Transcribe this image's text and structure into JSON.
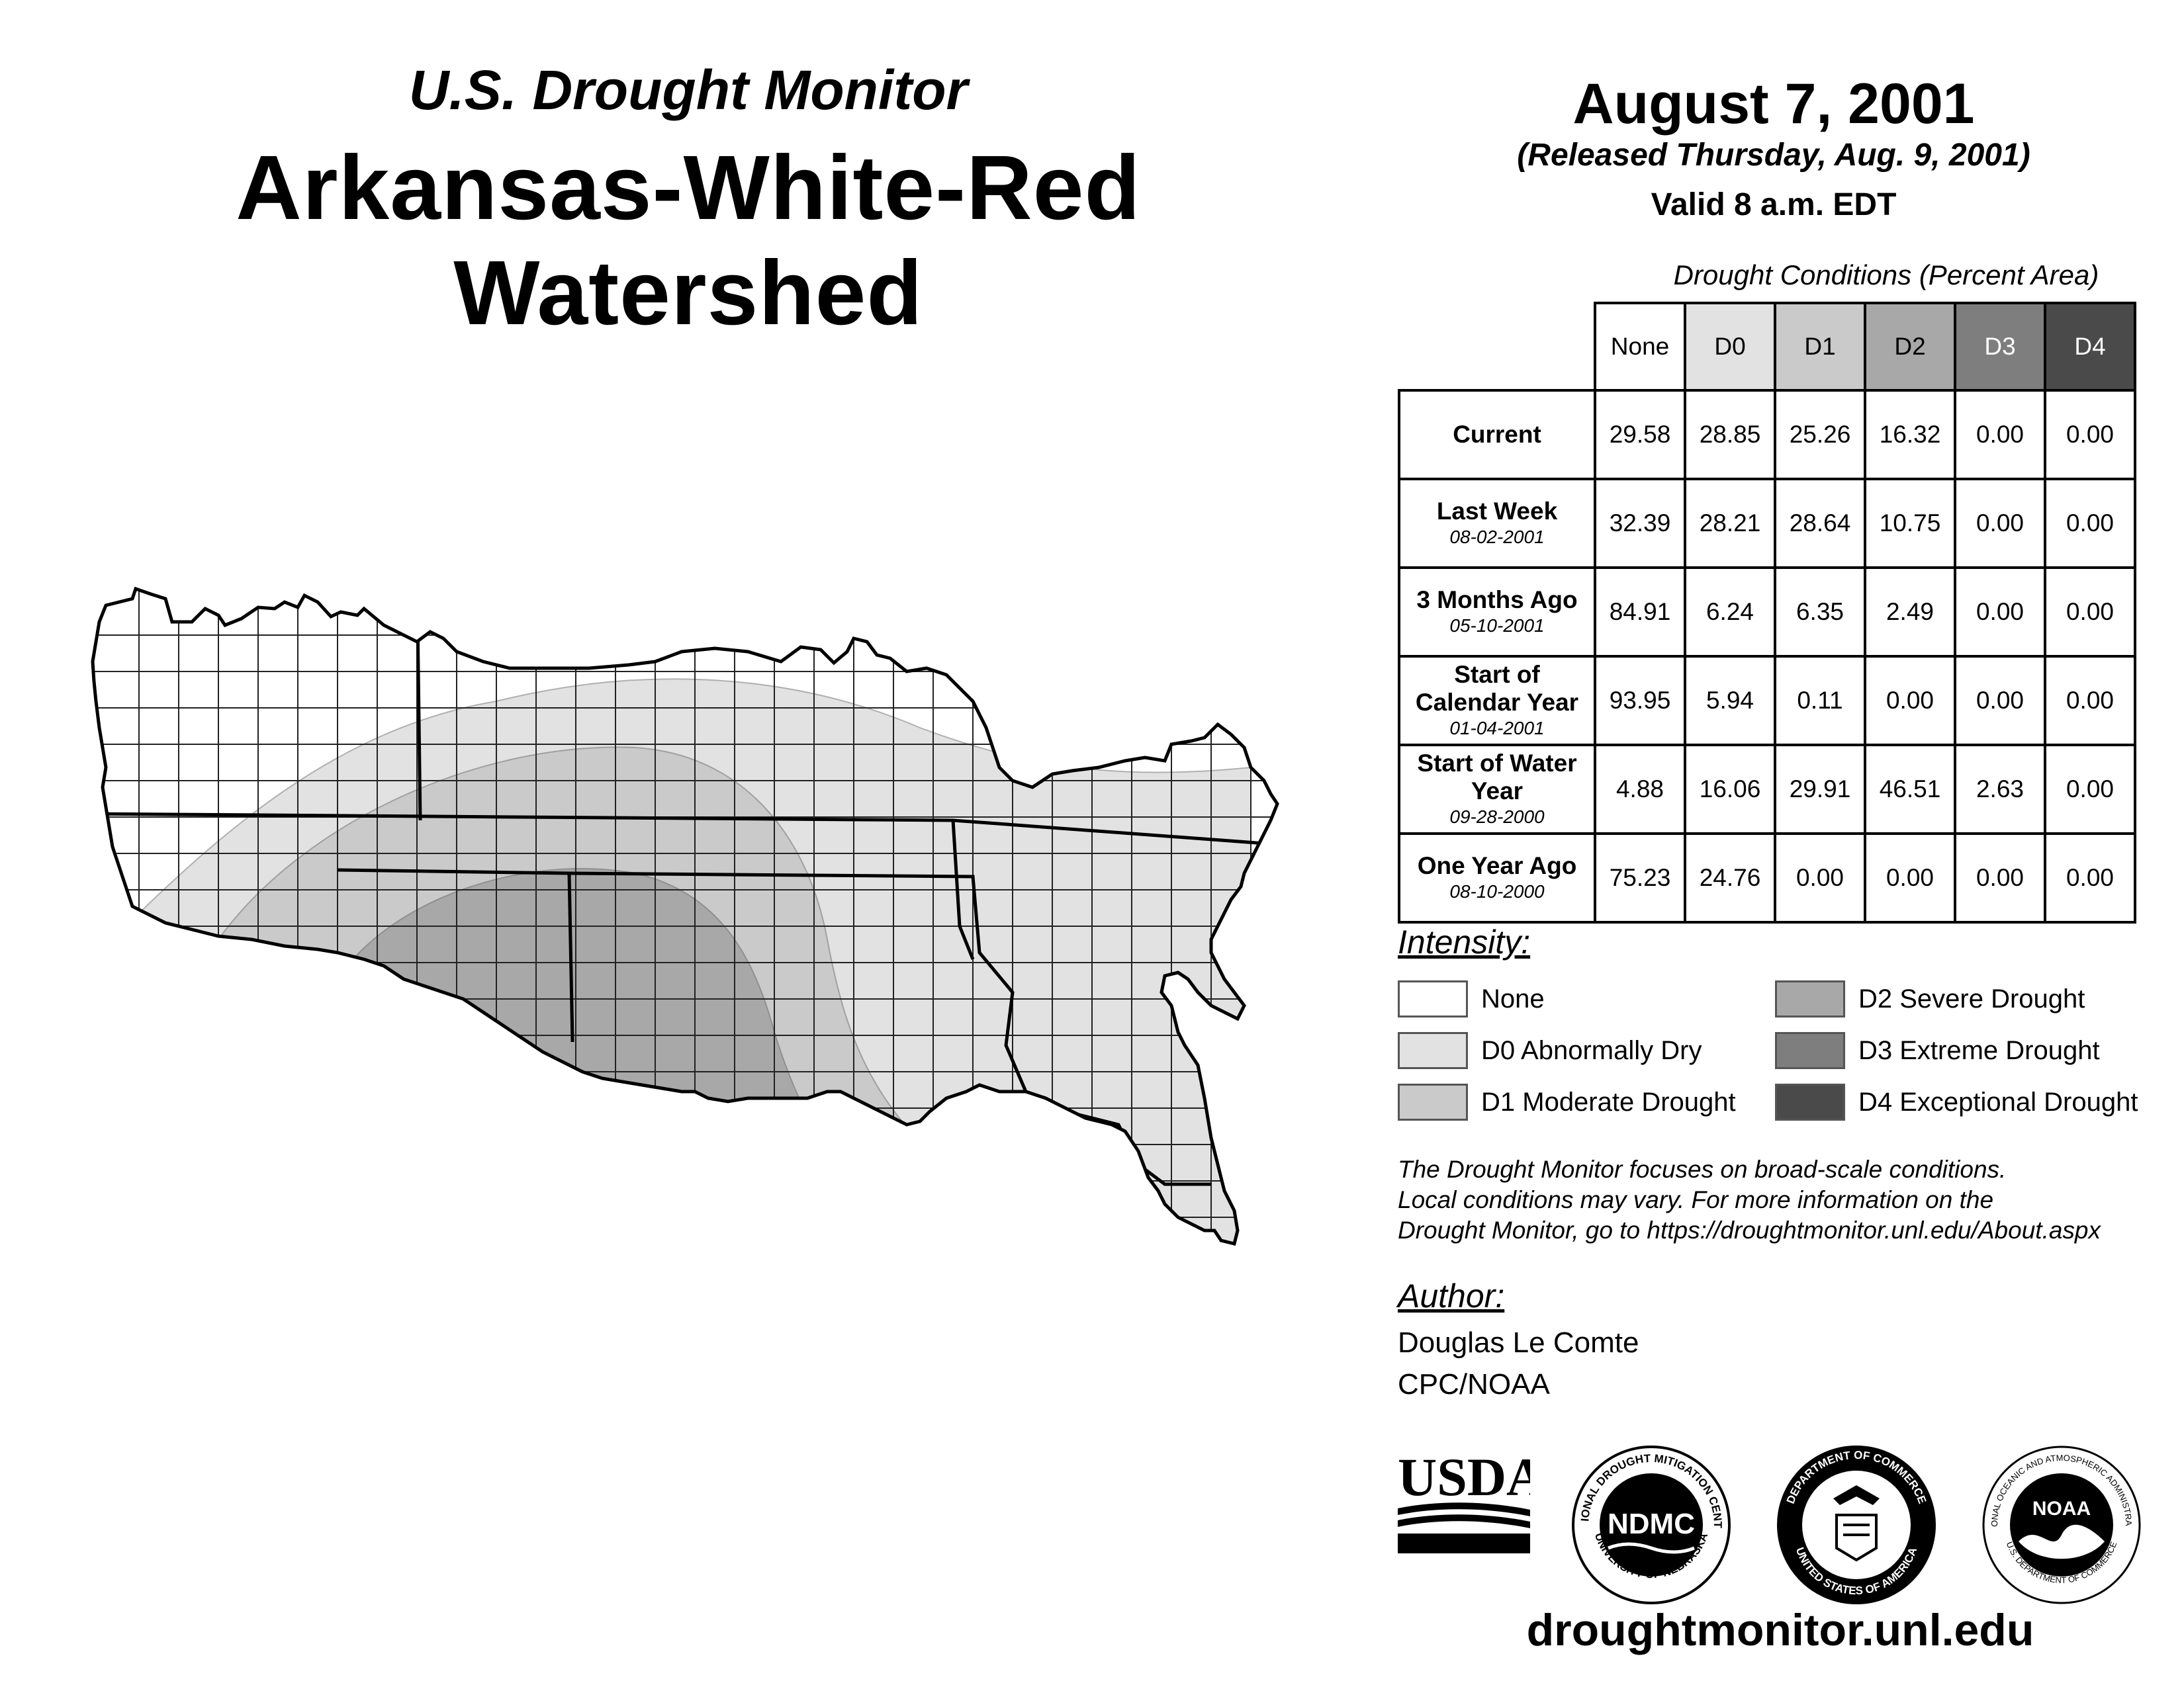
{
  "header": {
    "subtitle": "U.S. Drought Monitor",
    "title": "Arkansas-White-Red Watershed",
    "date": "August 7, 2001",
    "released": "(Released Thursday, Aug. 9, 2001)",
    "valid": "Valid 8 a.m. EDT"
  },
  "table": {
    "caption": "Drought Conditions (Percent Area)",
    "columns": [
      "None",
      "D0",
      "D1",
      "D2",
      "D3",
      "D4"
    ],
    "rows": [
      {
        "label": "Current",
        "date": "",
        "values": [
          "29.58",
          "28.85",
          "25.26",
          "16.32",
          "0.00",
          "0.00"
        ]
      },
      {
        "label": "Last Week",
        "date": "08-02-2001",
        "values": [
          "32.39",
          "28.21",
          "28.64",
          "10.75",
          "0.00",
          "0.00"
        ]
      },
      {
        "label": "3 Months Ago",
        "date": "05-10-2001",
        "values": [
          "84.91",
          "6.24",
          "6.35",
          "2.49",
          "0.00",
          "0.00"
        ]
      },
      {
        "label": "Start of Calendar Year",
        "date": "01-04-2001",
        "values": [
          "93.95",
          "5.94",
          "0.11",
          "0.00",
          "0.00",
          "0.00"
        ]
      },
      {
        "label": "Start of Water Year",
        "date": "09-28-2000",
        "values": [
          "4.88",
          "16.06",
          "29.91",
          "46.51",
          "2.63",
          "0.00"
        ]
      },
      {
        "label": "One Year Ago",
        "date": "08-10-2000",
        "values": [
          "75.23",
          "24.76",
          "0.00",
          "0.00",
          "0.00",
          "0.00"
        ]
      }
    ]
  },
  "legend": {
    "title": "Intensity:",
    "items": [
      {
        "label": "None",
        "color": "#ffffff"
      },
      {
        "label": "D0 Abnormally Dry",
        "color": "#e2e2e2"
      },
      {
        "label": "D1 Moderate Drought",
        "color": "#cacaca"
      },
      {
        "label": "D2 Severe Drought",
        "color": "#a8a8a8"
      },
      {
        "label": "D3 Extreme Drought",
        "color": "#7e7e7e"
      },
      {
        "label": "D4 Exceptional Drought",
        "color": "#4a4a4a"
      }
    ]
  },
  "note": {
    "line1": "The Drought Monitor focuses on broad-scale conditions.",
    "line2": "Local conditions may vary. For more information on the",
    "line3": "Drought Monitor, go to https://droughtmonitor.unl.edu/About.aspx"
  },
  "author": {
    "heading": "Author:",
    "name": "Douglas Le Comte",
    "org": "CPC/NOAA"
  },
  "logos": {
    "usda": "USDA",
    "ndmc": "NDMC",
    "ndmc_ring_top": "NATIONAL DROUGHT MITIGATION CENTER",
    "ndmc_ring_bottom": "UNIVERSITY OF NEBRASKA",
    "doc_ring_top": "DEPARTMENT OF COMMERCE",
    "doc_ring_bottom": "UNITED STATES OF AMERICA",
    "noaa": "NOAA",
    "noaa_ring_top": "NATIONAL OCEANIC AND ATMOSPHERIC ADMINISTRATION",
    "noaa_ring_bottom": "U.S. DEPARTMENT OF COMMERCE"
  },
  "footer": {
    "url": "droughtmonitor.unl.edu"
  }
}
